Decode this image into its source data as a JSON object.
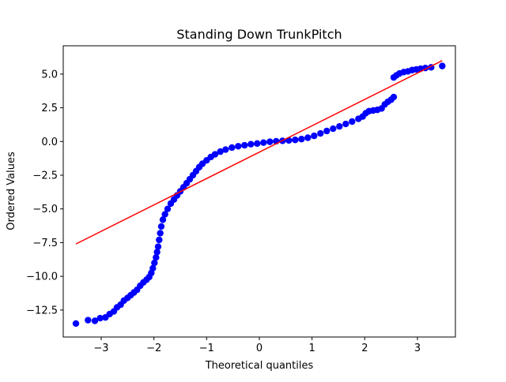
{
  "chart_data": {
    "type": "scatter",
    "title": "Standing Down TrunkPitch",
    "xlabel": "Theoretical quantiles",
    "ylabel": "Ordered Values",
    "xlim": [
      -3.72,
      3.72
    ],
    "ylim": [
      -14.5,
      7.1
    ],
    "grid": false,
    "legend": "none",
    "xticks": [
      {
        "value": -3,
        "label": "−3"
      },
      {
        "value": -2,
        "label": "−2"
      },
      {
        "value": -1,
        "label": "−1"
      },
      {
        "value": 0,
        "label": "0"
      },
      {
        "value": 1,
        "label": "1"
      },
      {
        "value": 2,
        "label": "2"
      },
      {
        "value": 3,
        "label": "3"
      }
    ],
    "yticks": [
      {
        "value": 5.0,
        "label": "5.0"
      },
      {
        "value": 2.5,
        "label": "2.5"
      },
      {
        "value": 0.0,
        "label": "0.0"
      },
      {
        "value": -2.5,
        "label": "−2.5"
      },
      {
        "value": -5.0,
        "label": "−5.0"
      },
      {
        "value": -7.5,
        "label": "−7.5"
      },
      {
        "value": -10.0,
        "label": "−10.0"
      },
      {
        "value": -12.5,
        "label": "−12.5"
      }
    ],
    "series": [
      {
        "kind": "points",
        "color": "#0000ff",
        "points": [
          [
            -3.48,
            -13.5
          ],
          [
            -3.25,
            -13.25
          ],
          [
            -3.12,
            -13.3
          ],
          [
            -3.02,
            -13.1
          ],
          [
            -2.92,
            -13.05
          ],
          [
            -2.84,
            -12.8
          ],
          [
            -2.76,
            -12.6
          ],
          [
            -2.7,
            -12.3
          ],
          [
            -2.63,
            -12.1
          ],
          [
            -2.57,
            -11.8
          ],
          [
            -2.5,
            -11.6
          ],
          [
            -2.44,
            -11.4
          ],
          [
            -2.38,
            -11.2
          ],
          [
            -2.32,
            -11.0
          ],
          [
            -2.26,
            -10.7
          ],
          [
            -2.2,
            -10.45
          ],
          [
            -2.14,
            -10.25
          ],
          [
            -2.09,
            -10.05
          ],
          [
            -2.05,
            -9.75
          ],
          [
            -2.02,
            -9.4
          ],
          [
            -1.99,
            -9.0
          ],
          [
            -1.96,
            -8.6
          ],
          [
            -1.94,
            -8.2
          ],
          [
            -1.92,
            -7.8
          ],
          [
            -1.9,
            -7.3
          ],
          [
            -1.88,
            -6.8
          ],
          [
            -1.86,
            -6.3
          ],
          [
            -1.83,
            -5.8
          ],
          [
            -1.79,
            -5.4
          ],
          [
            -1.74,
            -5.0
          ],
          [
            -1.68,
            -4.6
          ],
          [
            -1.62,
            -4.3
          ],
          [
            -1.56,
            -4.0
          ],
          [
            -1.5,
            -3.7
          ],
          [
            -1.44,
            -3.4
          ],
          [
            -1.38,
            -3.1
          ],
          [
            -1.32,
            -2.8
          ],
          [
            -1.26,
            -2.5
          ],
          [
            -1.2,
            -2.2
          ],
          [
            -1.14,
            -1.9
          ],
          [
            -1.08,
            -1.65
          ],
          [
            -1.0,
            -1.4
          ],
          [
            -0.92,
            -1.15
          ],
          [
            -0.84,
            -0.95
          ],
          [
            -0.74,
            -0.75
          ],
          [
            -0.64,
            -0.6
          ],
          [
            -0.52,
            -0.45
          ],
          [
            -0.4,
            -0.35
          ],
          [
            -0.28,
            -0.28
          ],
          [
            -0.16,
            -0.2
          ],
          [
            -0.04,
            -0.15
          ],
          [
            0.08,
            -0.08
          ],
          [
            0.2,
            -0.02
          ],
          [
            0.32,
            0.02
          ],
          [
            0.44,
            0.05
          ],
          [
            0.56,
            0.08
          ],
          [
            0.68,
            0.12
          ],
          [
            0.8,
            0.18
          ],
          [
            0.92,
            0.28
          ],
          [
            1.04,
            0.42
          ],
          [
            1.16,
            0.6
          ],
          [
            1.28,
            0.78
          ],
          [
            1.4,
            0.95
          ],
          [
            1.52,
            1.12
          ],
          [
            1.64,
            1.3
          ],
          [
            1.76,
            1.48
          ],
          [
            1.88,
            1.68
          ],
          [
            1.96,
            1.85
          ],
          [
            2.02,
            2.1
          ],
          [
            2.08,
            2.25
          ],
          [
            2.16,
            2.3
          ],
          [
            2.24,
            2.35
          ],
          [
            2.32,
            2.45
          ],
          [
            2.38,
            2.75
          ],
          [
            2.44,
            2.95
          ],
          [
            2.5,
            3.1
          ],
          [
            2.55,
            3.3
          ],
          [
            2.55,
            4.75
          ],
          [
            2.6,
            4.9
          ],
          [
            2.66,
            5.05
          ],
          [
            2.74,
            5.15
          ],
          [
            2.82,
            5.2
          ],
          [
            2.9,
            5.3
          ],
          [
            2.98,
            5.35
          ],
          [
            3.06,
            5.4
          ],
          [
            3.15,
            5.45
          ],
          [
            3.26,
            5.5
          ],
          [
            3.47,
            5.6
          ]
        ]
      },
      {
        "kind": "fit-line",
        "color": "#ff0000",
        "points": [
          [
            -3.48,
            -7.6
          ],
          [
            3.47,
            6.0
          ]
        ]
      }
    ]
  }
}
